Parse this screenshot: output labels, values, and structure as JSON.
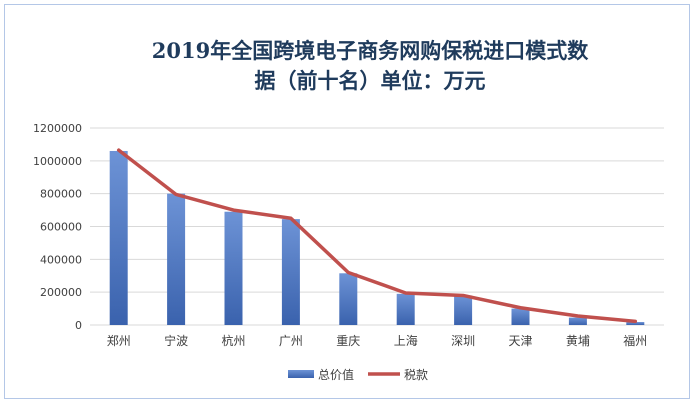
{
  "chart_data": {
    "type": "bar",
    "title": "2019年全国跨境电子商务网购保税进口模式数据（前十名）单位：万元",
    "title_lines": [
      "2019年全国跨境电子商务网购保税进口模式数",
      "据（前十名）单位：万元"
    ],
    "categories": [
      "郑州",
      "宁波",
      "杭州",
      "广州",
      "重庆",
      "上海",
      "深圳",
      "天津",
      "黄埔",
      "福州"
    ],
    "series": [
      {
        "name": "总价值",
        "kind": "bar",
        "color": "#4472c4",
        "values": [
          1060000,
          800000,
          690000,
          645000,
          315000,
          190000,
          180000,
          100000,
          45000,
          18000
        ]
      },
      {
        "name": "税款",
        "kind": "line",
        "color": "#c0504d",
        "values": [
          1065000,
          795000,
          700000,
          650000,
          320000,
          195000,
          180000,
          105000,
          55000,
          22000
        ]
      }
    ],
    "ylim": [
      0,
      1200000
    ],
    "yticks": [
      0,
      200000,
      400000,
      600000,
      800000,
      1000000,
      1200000
    ],
    "grid": true,
    "legend_position": "bottom",
    "xlabel": "",
    "ylabel": ""
  }
}
